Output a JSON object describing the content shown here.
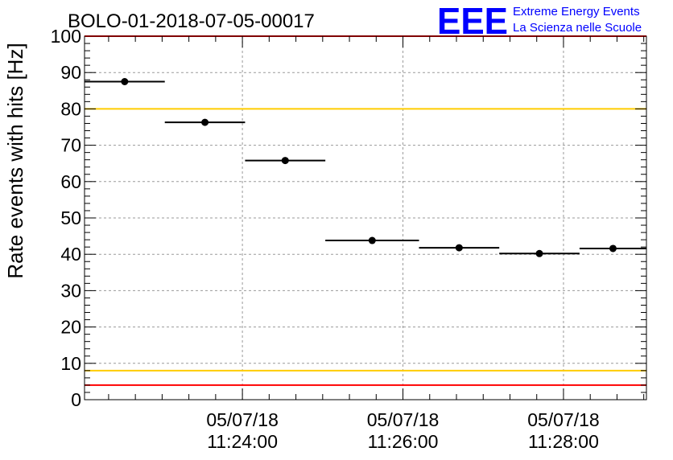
{
  "logo": {
    "mark": "EEE",
    "line1": "Extreme Energy Events",
    "line2": "La Scienza nelle Scuole",
    "color": "#0000ff"
  },
  "chart_data": {
    "type": "scatter",
    "title": "BOLO-01-2018-07-05-00017",
    "ylabel": "Rate events with hits [Hz]",
    "xlabel": "",
    "x_axis_type": "time",
    "xlim": [
      "05/07/18 11:22:02",
      "05/07/18 11:29:02"
    ],
    "ylim": [
      0,
      100
    ],
    "y_ticks": [
      0,
      10,
      20,
      30,
      40,
      50,
      60,
      70,
      80,
      90,
      100
    ],
    "x_ticks": [
      {
        "time": "05/07/18 11:24:00",
        "date_label": "05/07/18",
        "time_label": "11:24:00"
      },
      {
        "time": "05/07/18 11:26:00",
        "date_label": "05/07/18",
        "time_label": "11:26:00"
      },
      {
        "time": "05/07/18 11:28:00",
        "date_label": "05/07/18",
        "time_label": "11:28:00"
      }
    ],
    "grid": true,
    "series": [
      {
        "marker": "circle",
        "color": "#000000",
        "points": [
          {
            "x_start": "05/07/18 11:22:02",
            "x_end": "05/07/18 11:23:02",
            "y": 87.5
          },
          {
            "x_start": "05/07/18 11:23:02",
            "x_end": "05/07/18 11:24:02",
            "y": 76.3
          },
          {
            "x_start": "05/07/18 11:24:02",
            "x_end": "05/07/18 11:25:02",
            "y": 65.8
          },
          {
            "x_start": "05/07/18 11:25:02",
            "x_end": "05/07/18 11:26:12",
            "y": 43.8
          },
          {
            "x_start": "05/07/18 11:26:12",
            "x_end": "05/07/18 11:27:12",
            "y": 41.8
          },
          {
            "x_start": "05/07/18 11:27:12",
            "x_end": "05/07/18 11:28:12",
            "y": 40.2
          },
          {
            "x_start": "05/07/18 11:28:12",
            "x_end": "05/07/18 11:29:02",
            "y": 41.6
          }
        ]
      }
    ],
    "reference_lines": [
      {
        "y": 100,
        "color": "#ff0000"
      },
      {
        "y": 80,
        "color": "#ffcc00"
      },
      {
        "y": 8,
        "color": "#ffcc00"
      },
      {
        "y": 4,
        "color": "#ff0000"
      }
    ]
  }
}
